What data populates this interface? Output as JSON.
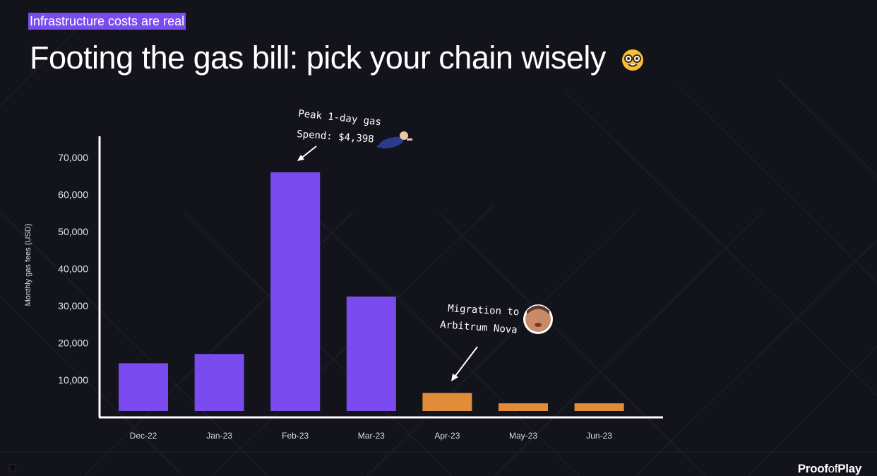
{
  "slide": {
    "eyebrow": "Infrastructure costs are real",
    "title": "Footing the gas bill: pick your chain wisely",
    "title_icon": "nerd-face-emoji-icon",
    "brand": {
      "part1": "Proof",
      "part2": "of",
      "part3": "Play"
    }
  },
  "colors": {
    "background": "#13131c",
    "accent": "#7a4cf0",
    "highlight": "#e08c38",
    "text": "#ffffff"
  },
  "chart_data": {
    "type": "bar",
    "title": "",
    "xlabel": "",
    "ylabel": "Monthly gas fees (USD)",
    "categories": [
      "Dec-22",
      "Jan-23",
      "Feb-23",
      "Mar-23",
      "Apr-23",
      "May-23",
      "Jun-23"
    ],
    "values": [
      14500,
      17000,
      66000,
      32500,
      6500,
      3700,
      3700
    ],
    "bar_colors": [
      "#7a4cf0",
      "#7a4cf0",
      "#7a4cf0",
      "#7a4cf0",
      "#e08c38",
      "#e08c38",
      "#e08c38"
    ],
    "ylim": [
      0,
      75000
    ],
    "yticks": [
      10000,
      20000,
      30000,
      40000,
      50000,
      60000,
      70000
    ],
    "ytick_labels": [
      "10,000",
      "20,000",
      "30,000",
      "40,000",
      "50,000",
      "60,000",
      "70,000"
    ],
    "grid": false,
    "legend": "none",
    "annotations": [
      {
        "lines": [
          "Peak 1-day gas",
          "Spend: $4,398"
        ],
        "target": "Feb-23",
        "icon": "flying-man-sticker-icon"
      },
      {
        "lines": [
          "Migration to",
          "Arbitrum Nova"
        ],
        "target": "Apr-23",
        "icon": "face-avatar-sticker-icon"
      }
    ]
  }
}
